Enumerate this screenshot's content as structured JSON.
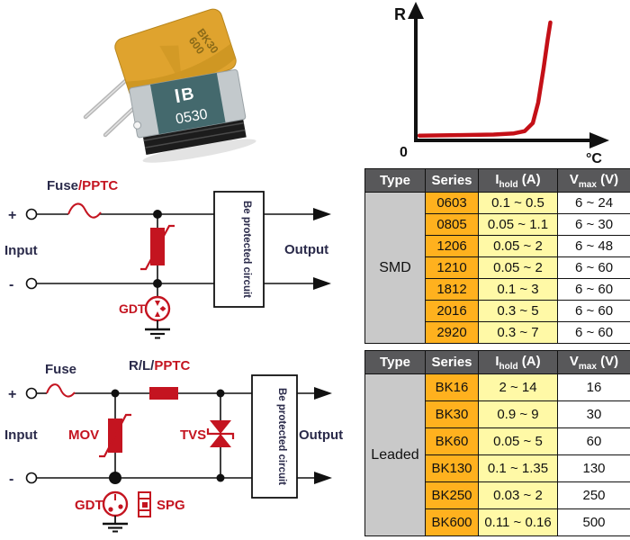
{
  "colors": {
    "accent_red": "#c41420",
    "label_navy": "#2a2a4a",
    "table_header_gray": "#58585a",
    "table_type_gray": "#c9c9c9",
    "table_series_orange": "#ffb11e",
    "table_ihold_yellow": "#fff9a6",
    "smd_body_teal": "#44696d",
    "leaded_body_yellow": "#dfa32e"
  },
  "photos": {
    "leaded_device_marking_line1": "BK30",
    "leaded_device_marking_line2": "600",
    "smd_device_logo": "B",
    "smd_device_marking": "0530"
  },
  "chart_data": {
    "type": "line",
    "title": "",
    "ylabel": "R",
    "xlabel": "°C",
    "origin_label": "0",
    "grid": false,
    "legend": false,
    "series": [
      {
        "name": "PPTC resistance curve",
        "color": "#c41017",
        "points_normalized": [
          [
            0,
            0.01
          ],
          [
            0.3,
            0.015
          ],
          [
            0.55,
            0.02
          ],
          [
            0.7,
            0.03
          ],
          [
            0.78,
            0.05
          ],
          [
            0.84,
            0.12
          ],
          [
            0.88,
            0.3
          ],
          [
            0.92,
            0.6
          ],
          [
            0.95,
            0.85
          ],
          [
            0.97,
            1.0
          ]
        ]
      }
    ]
  },
  "circuit1": {
    "plus": "+",
    "minus": "-",
    "input_label": "Input",
    "output_label": "Output",
    "fuse_label_dark": "Fuse",
    "fuse_label_red": "/PPTC",
    "gdt_label": "GDT",
    "box_label": "Be protected circuit"
  },
  "circuit2": {
    "plus": "+",
    "minus": "-",
    "input_label": "Input",
    "output_label": "Output",
    "fuse_label": "Fuse",
    "rl_label_dark": "R/L/",
    "rl_label_red": "PPTC",
    "mov_label": "MOV",
    "tvs_label": "TVS",
    "gdt_label": "GDT",
    "spg_label": "SPG",
    "box_label": "Be protected circuit"
  },
  "tables": {
    "smd": {
      "type_label": "SMD",
      "headers": [
        {
          "text": "Type"
        },
        {
          "text": "Series"
        },
        {
          "text": "I",
          "sub": "hold",
          "suffix": " (A)"
        },
        {
          "text": "V",
          "sub": "max",
          "suffix": " (V)"
        }
      ],
      "rows": [
        [
          "0603",
          "0.1 ~ 0.5",
          "6 ~ 24"
        ],
        [
          "0805",
          "0.05 ~ 1.1",
          "6 ~ 30"
        ],
        [
          "1206",
          "0.05 ~ 2",
          "6 ~ 48"
        ],
        [
          "1210",
          "0.05 ~ 2",
          "6 ~ 60"
        ],
        [
          "1812",
          "0.1 ~ 3",
          "6 ~ 60"
        ],
        [
          "2016",
          "0.3 ~ 5",
          "6 ~ 60"
        ],
        [
          "2920",
          "0.3 ~ 7",
          "6 ~ 60"
        ]
      ]
    },
    "leaded": {
      "type_label": "Leaded",
      "headers": [
        {
          "text": "Type"
        },
        {
          "text": "Series"
        },
        {
          "text": "I",
          "sub": "hold",
          "suffix": " (A)"
        },
        {
          "text": "V",
          "sub": "max",
          "suffix": " (V)"
        }
      ],
      "rows": [
        [
          "BK16",
          "2 ~ 14",
          "16"
        ],
        [
          "BK30",
          "0.9 ~ 9",
          "30"
        ],
        [
          "BK60",
          "0.05 ~ 5",
          "60"
        ],
        [
          "BK130",
          "0.1 ~ 1.35",
          "130"
        ],
        [
          "BK250",
          "0.03 ~ 2",
          "250"
        ],
        [
          "BK600",
          "0.11 ~ 0.16",
          "500"
        ]
      ]
    }
  }
}
